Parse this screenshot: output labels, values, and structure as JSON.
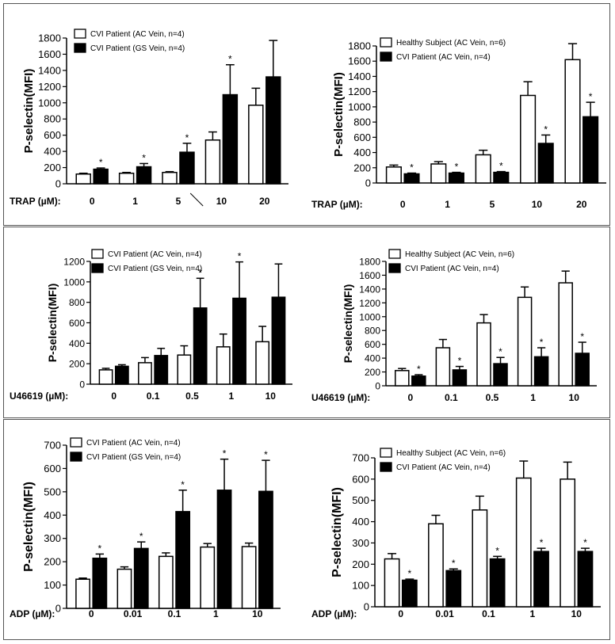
{
  "chart_data": [
    {
      "type": "bar",
      "ylabel": "P-selectin(MFI)",
      "xlabel_prefix": "TRAP",
      "xlabel_unit": "(µM):",
      "ylim": [
        0,
        1800
      ],
      "yticks": [
        0,
        200,
        400,
        600,
        800,
        1000,
        1200,
        1400,
        1600,
        1800
      ],
      "categories": [
        "0",
        "1",
        "5",
        "10",
        "20"
      ],
      "break_marker": true,
      "series": [
        {
          "name": "CVI Patient (AC Vein, n=4)",
          "color": "#ffffff",
          "values": [
            120,
            130,
            140,
            540,
            970
          ],
          "errors": [
            10,
            10,
            10,
            100,
            210
          ],
          "stars": [
            false,
            false,
            false,
            false,
            false
          ]
        },
        {
          "name": "CVI Patient (GS Vein, n=4)",
          "color": "#000000",
          "values": [
            180,
            210,
            390,
            1100,
            1320
          ],
          "errors": [
            15,
            40,
            110,
            370,
            450
          ],
          "stars": [
            true,
            true,
            true,
            true,
            false
          ]
        }
      ]
    },
    {
      "type": "bar",
      "ylabel": "P-selectin(MFI)",
      "xlabel_prefix": "TRAP",
      "xlabel_unit": "(µM):",
      "ylim": [
        0,
        1800
      ],
      "yticks": [
        0,
        200,
        400,
        600,
        800,
        1000,
        1200,
        1400,
        1600,
        1800
      ],
      "categories": [
        "0",
        "1",
        "5",
        "10",
        "20"
      ],
      "series": [
        {
          "name": "Healthy Subject (AC Vein, n=6)",
          "color": "#ffffff",
          "values": [
            210,
            250,
            370,
            1150,
            1620
          ],
          "errors": [
            25,
            30,
            60,
            180,
            210
          ],
          "stars": [
            false,
            false,
            false,
            false,
            false
          ]
        },
        {
          "name": "CVI Patient (AC Vein, n=4)",
          "color": "#000000",
          "values": [
            120,
            130,
            140,
            520,
            870
          ],
          "errors": [
            10,
            10,
            10,
            110,
            190
          ],
          "stars": [
            true,
            true,
            true,
            true,
            true
          ]
        }
      ]
    },
    {
      "type": "bar",
      "ylabel": "P-selectin(MFI)",
      "xlabel_prefix": "U46619",
      "xlabel_unit": "(µM):",
      "ylim": [
        0,
        1200
      ],
      "yticks": [
        0,
        200,
        400,
        600,
        800,
        1000,
        1200
      ],
      "categories": [
        "0",
        "0.1",
        "0.5",
        "1",
        "10"
      ],
      "series": [
        {
          "name": "CVI Patient (AC Vein, n=4)",
          "color": "#ffffff",
          "values": [
            140,
            210,
            285,
            365,
            415
          ],
          "errors": [
            15,
            50,
            90,
            125,
            150
          ],
          "stars": [
            false,
            false,
            false,
            false,
            false
          ]
        },
        {
          "name": "CVI Patient (GS Vein, n=4)",
          "color": "#000000",
          "values": [
            175,
            280,
            745,
            840,
            850
          ],
          "errors": [
            15,
            70,
            290,
            355,
            325
          ],
          "stars": [
            false,
            false,
            true,
            true,
            false
          ]
        }
      ]
    },
    {
      "type": "bar",
      "ylabel": "P-selectin(MFI)",
      "xlabel_prefix": "U46619",
      "xlabel_unit": "(µM):",
      "ylim": [
        0,
        1800
      ],
      "yticks": [
        0,
        200,
        400,
        600,
        800,
        1000,
        1200,
        1400,
        1600,
        1800
      ],
      "categories": [
        "0",
        "0.1",
        "0.5",
        "1",
        "10"
      ],
      "series": [
        {
          "name": "Healthy Subject (AC Vein, n=6)",
          "color": "#ffffff",
          "values": [
            220,
            550,
            910,
            1280,
            1490
          ],
          "errors": [
            30,
            120,
            120,
            150,
            170
          ],
          "stars": [
            false,
            false,
            false,
            false,
            false
          ]
        },
        {
          "name": "CVI Patient (AC Vein, n=4)",
          "color": "#000000",
          "values": [
            140,
            230,
            320,
            420,
            470
          ],
          "errors": [
            20,
            50,
            90,
            130,
            160
          ],
          "stars": [
            true,
            true,
            true,
            true,
            true
          ]
        }
      ]
    },
    {
      "type": "bar",
      "ylabel": "P-selectin(MFI)",
      "xlabel_prefix": "ADP",
      "xlabel_unit": "(µM):",
      "ylim": [
        0,
        700
      ],
      "yticks": [
        0,
        100,
        200,
        300,
        400,
        500,
        600,
        700
      ],
      "categories": [
        "0",
        "0.01",
        "0.1",
        "1",
        "10"
      ],
      "series": [
        {
          "name": "CVI Patient (AC Vein, n=4)",
          "color": "#ffffff",
          "values": [
            125,
            168,
            223,
            263,
            265
          ],
          "errors": [
            5,
            10,
            15,
            15,
            15
          ],
          "stars": [
            false,
            false,
            false,
            false,
            false
          ]
        },
        {
          "name": "CVI Patient (GS Vein, n=4)",
          "color": "#000000",
          "values": [
            215,
            257,
            415,
            507,
            502
          ],
          "errors": [
            18,
            28,
            92,
            133,
            133
          ],
          "stars": [
            true,
            true,
            true,
            true,
            true
          ]
        }
      ]
    },
    {
      "type": "bar",
      "ylabel": "P-selectin(MFI)",
      "xlabel_prefix": "ADP",
      "xlabel_unit": "(µM):",
      "ylim": [
        0,
        700
      ],
      "yticks": [
        0,
        100,
        200,
        300,
        400,
        500,
        600,
        700
      ],
      "categories": [
        "0",
        "0.01",
        "0.1",
        "1",
        "10"
      ],
      "series": [
        {
          "name": "Healthy Subject (AC Vein, n=6)",
          "color": "#ffffff",
          "values": [
            225,
            390,
            455,
            605,
            600
          ],
          "errors": [
            25,
            40,
            65,
            80,
            80
          ],
          "stars": [
            false,
            false,
            false,
            false,
            false
          ]
        },
        {
          "name": "CVI Patient (AC Vein, n=4)",
          "color": "#000000",
          "values": [
            125,
            170,
            225,
            260,
            260
          ],
          "errors": [
            5,
            8,
            12,
            15,
            15
          ],
          "stars": [
            true,
            true,
            true,
            true,
            true
          ]
        }
      ]
    }
  ]
}
